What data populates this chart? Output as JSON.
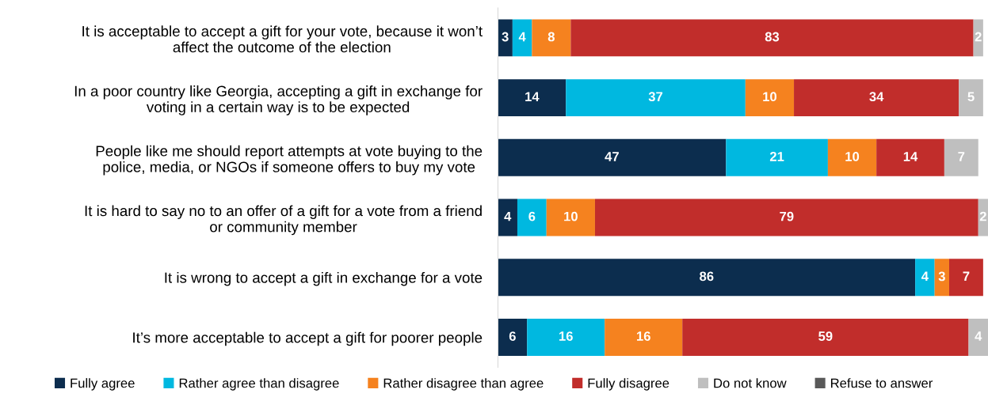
{
  "chart_data": {
    "type": "bar",
    "orientation": "horizontal",
    "stacked": true,
    "data_labels": true,
    "tick_labels": "y",
    "grid": false,
    "legend": "bottom",
    "xlim": [
      0,
      101
    ],
    "categories": [
      "It is acceptable to accept a gift for your vote, because it won’t\naffect the outcome of the election",
      "In a poor country like Georgia, accepting a gift in exchange for\nvoting in a certain way is to be expected",
      "People like me should report attempts at vote buying to the\npolice, media, or NGOs if someone offers to buy my vote",
      "It is hard to say no to an offer of a gift for a vote from a friend\nor community member",
      "It is wrong to accept a gift in exchange for a vote",
      "It’s more acceptable to accept a gift for poorer people"
    ],
    "series": [
      {
        "name": "Fully agree",
        "color": "#0c2d4e",
        "values": [
          3,
          14,
          47,
          4,
          86,
          6
        ]
      },
      {
        "name": "Rather agree than disagree",
        "color": "#00b8e0",
        "values": [
          4,
          37,
          21,
          6,
          4,
          16
        ]
      },
      {
        "name": "Rather disagree than agree",
        "color": "#f5821f",
        "values": [
          8,
          10,
          10,
          10,
          3,
          16
        ]
      },
      {
        "name": "Fully disagree",
        "color": "#c12d2b",
        "values": [
          83,
          34,
          14,
          79,
          7,
          59
        ]
      },
      {
        "name": "Do not know",
        "color": "#bfbfbf",
        "values": [
          2,
          5,
          7,
          2,
          null,
          4
        ]
      },
      {
        "name": "Refuse to answer",
        "color": "#595959",
        "values": [
          null,
          null,
          null,
          null,
          null,
          null
        ]
      }
    ]
  }
}
